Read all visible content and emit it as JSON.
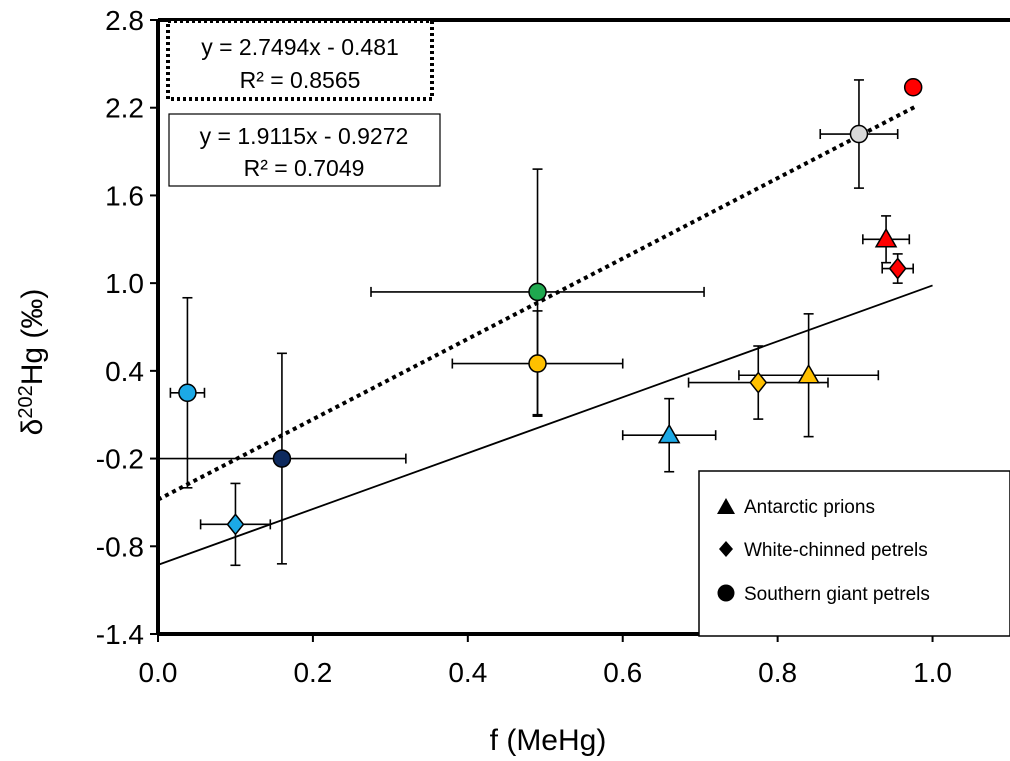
{
  "chart_data": {
    "type": "scatter",
    "xlabel": "f (MeHg)",
    "ylabel_main": "δ",
    "ylabel_sup": "202",
    "ylabel_tail": "Hg (‰)",
    "xlim": [
      0.0,
      1.1
    ],
    "ylim": [
      -1.4,
      2.8
    ],
    "xticks": [
      "0.0",
      "0.2",
      "0.4",
      "0.6",
      "0.8",
      "1.0"
    ],
    "xtick_values": [
      0.0,
      0.2,
      0.4,
      0.6,
      0.8,
      1.0
    ],
    "yticks": [
      "2.8",
      "2.2",
      "1.6",
      "1.0",
      "0.4",
      "-0.2",
      "-0.8",
      "-1.4"
    ],
    "ytick_values": [
      2.8,
      2.2,
      1.6,
      1.0,
      0.4,
      -0.2,
      -0.8,
      -1.4
    ],
    "grid": false,
    "legend_position": "bottom-right",
    "legend": [
      {
        "label": "Antarctic prions",
        "marker": "triangle"
      },
      {
        "label": "White-chinned petrels",
        "marker": "diamond"
      },
      {
        "label": "Southern giant petrels",
        "marker": "circle"
      }
    ],
    "regressions": [
      {
        "style": "dotted",
        "slope": 2.7494,
        "intercept": -0.481,
        "x_range": [
          0.0,
          0.98
        ],
        "equation": "y = 2.7494x - 0.481",
        "r2": "R² = 0.8565",
        "box": "dotted"
      },
      {
        "style": "solid",
        "slope": 1.9115,
        "intercept": -0.9272,
        "x_range": [
          0.0,
          1.0
        ],
        "equation": "y = 1.9115x - 0.9272",
        "r2": "R² = 0.7049",
        "box": "solid"
      }
    ],
    "points": [
      {
        "species": "Antarctic prions",
        "marker": "triangle",
        "color": "#1ca9e6",
        "x": 0.66,
        "y": -0.04,
        "xerr": 0.06,
        "yerr": 0.25
      },
      {
        "species": "Antarctic prions",
        "marker": "triangle",
        "color": "#ffc000",
        "x": 0.84,
        "y": 0.37,
        "xerr": 0.09,
        "yerr": 0.42
      },
      {
        "species": "Antarctic prions",
        "marker": "triangle",
        "color": "#ff0000",
        "x": 0.94,
        "y": 1.3,
        "xerr": 0.03,
        "yerr": 0.16
      },
      {
        "species": "White-chinned petrels",
        "marker": "diamond",
        "color": "#1ca9e6",
        "x": 0.1,
        "y": -0.65,
        "xerr": 0.045,
        "yerr": 0.28
      },
      {
        "species": "White-chinned petrels",
        "marker": "diamond",
        "color": "#ffc000",
        "x": 0.775,
        "y": 0.32,
        "xerr": 0.09,
        "yerr": 0.25
      },
      {
        "species": "White-chinned petrels",
        "marker": "diamond",
        "color": "#ff0000",
        "x": 0.955,
        "y": 1.1,
        "xerr": 0.02,
        "yerr": 0.1
      },
      {
        "species": "Southern giant petrels",
        "marker": "circle",
        "color": "#1ca9e6",
        "x": 0.038,
        "y": 0.25,
        "xerr": 0.022,
        "yerr": 0.65
      },
      {
        "species": "Southern giant petrels",
        "marker": "circle",
        "color": "#0e2a5e",
        "x": 0.16,
        "y": -0.2,
        "xerr": 0.16,
        "yerr": 0.72
      },
      {
        "species": "Southern giant petrels",
        "marker": "circle",
        "color": "#ffc000",
        "x": 0.49,
        "y": 0.45,
        "xerr": 0.11,
        "yerr": 0.36
      },
      {
        "species": "Southern giant petrels",
        "marker": "circle",
        "color": "#1fa84f",
        "x": 0.49,
        "y": 0.94,
        "xerr": 0.215,
        "yerr": 0.84
      },
      {
        "species": "Southern giant petrels",
        "marker": "circle",
        "color": "#d9d9d9",
        "x": 0.905,
        "y": 2.02,
        "xerr": 0.05,
        "yerr": 0.37
      },
      {
        "species": "Southern giant petrels",
        "marker": "circle",
        "color": "#ff0000",
        "x": 0.975,
        "y": 2.34,
        "xerr": 0,
        "yerr": 0
      }
    ]
  }
}
